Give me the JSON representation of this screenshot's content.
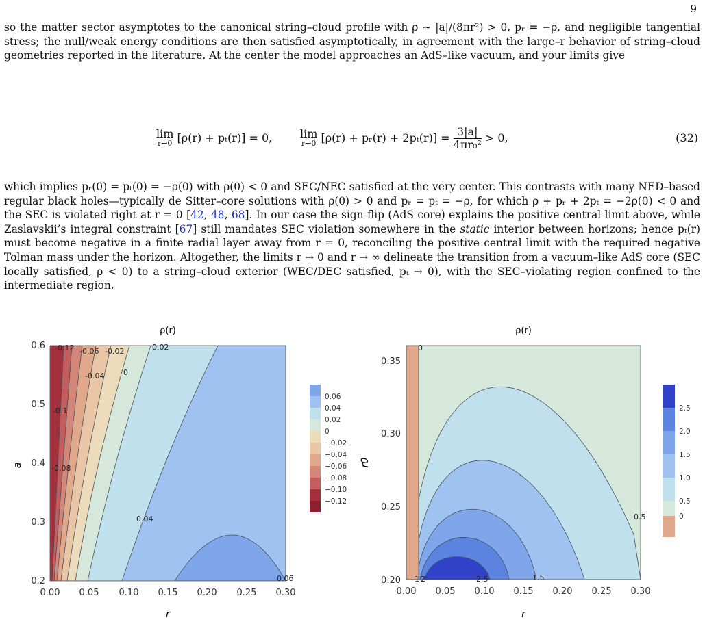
{
  "page_number": "9",
  "para1": "so the matter sector asymptotes to the canonical string–cloud profile with ρ ∼ |a|/(8πr²) > 0, pᵣ = −ρ, and negligible tangential stress; the null/weak energy conditions are then satisfied asymptotically, in agreement with the large–r behavior of string–cloud geometries reported in the literature. At the center the model approaches an AdS–like vacuum, and your limits give",
  "equation": {
    "lim_sub": "r→0",
    "expr1": "[ρ(r) + pₜ(r)] = 0,",
    "expr2": "[ρ(r) + pᵣ(r) + 2pₜ(r)] =",
    "frac_num": "3|a|",
    "frac_den": "4πr₀²",
    "tail": "> 0,",
    "number": "(32)"
  },
  "para2": {
    "t1": "which implies pᵣ(0) = pₜ(0) = −ρ(0) with ρ(0) < 0 and SEC/NEC satisfied at the very center. This contrasts with many NED–based regular black holes—typically de Sitter–core solutions with ρ(0) > 0 and pᵣ = pₜ = −ρ, for which ρ + pᵣ + 2pₜ = −2ρ(0) < 0 and the SEC is violated right at r = 0 [",
    "c1": "42",
    "t2": ", ",
    "c2": "48",
    "t3": ", ",
    "c3": "68",
    "t4": "]. In our case the sign flip (AdS core) explains the positive central limit above, while Zaslavskii’s integral constraint [",
    "c4": "67",
    "t5": "] still mandates SEC violation somewhere in the ",
    "t6": "static",
    "t7": " interior between horizons; hence pₜ(r) must become negative in a finite radial layer away from r = 0, reconciling the positive central limit with the required negative Tolman mass under the horizon. Altogether, the limits r → 0 and r → ∞ delineate the transition from a vacuum–like AdS core (SEC locally satisfied, ρ < 0) to a string–cloud exterior (WEC/DEC satisfied, pₜ → 0), with the SEC–violating region confined to the intermediate region."
  },
  "colors": {
    "link": "#1a33cc"
  },
  "chart_data": [
    {
      "type": "contour",
      "title": "ρ(r)",
      "xlabel": "r",
      "ylabel": "a",
      "xlim": [
        0,
        0.3
      ],
      "ylim": [
        0.2,
        0.6
      ],
      "x_ticks": [
        "0.00",
        "0.05",
        "0.10",
        "0.15",
        "0.20",
        "0.25",
        "0.30"
      ],
      "y_ticks": [
        "0.2",
        "0.3",
        "0.4",
        "0.5",
        "0.6"
      ],
      "legend": [
        "0.06",
        "0.04",
        "0.02",
        "0",
        "−0.02",
        "−0.04",
        "−0.06",
        "−0.08",
        "−0.10",
        "−0.12"
      ],
      "contour_labels": [
        "-0.12",
        "-0.06",
        "-0.02",
        "0.02",
        "-0.04",
        "0",
        "-0.1",
        "-0.08",
        "0.04",
        "0.06"
      ]
    },
    {
      "type": "contour",
      "title": "ρ(r)",
      "xlabel": "r",
      "ylabel": "r0",
      "xlim": [
        0,
        0.3
      ],
      "ylim": [
        0.2,
        0.36
      ],
      "x_ticks": [
        "0.00",
        "0.05",
        "0.10",
        "0.15",
        "0.20",
        "0.25",
        "0.30"
      ],
      "y_ticks": [
        "0.20",
        "0.25",
        "0.30",
        "0.35"
      ],
      "legend": [
        "2.5",
        "2.0",
        "1.5",
        "1.0",
        "0.5",
        "0"
      ],
      "contour_labels": [
        "0",
        "0.5",
        "1",
        "2",
        "2.5",
        "1.5"
      ]
    }
  ]
}
